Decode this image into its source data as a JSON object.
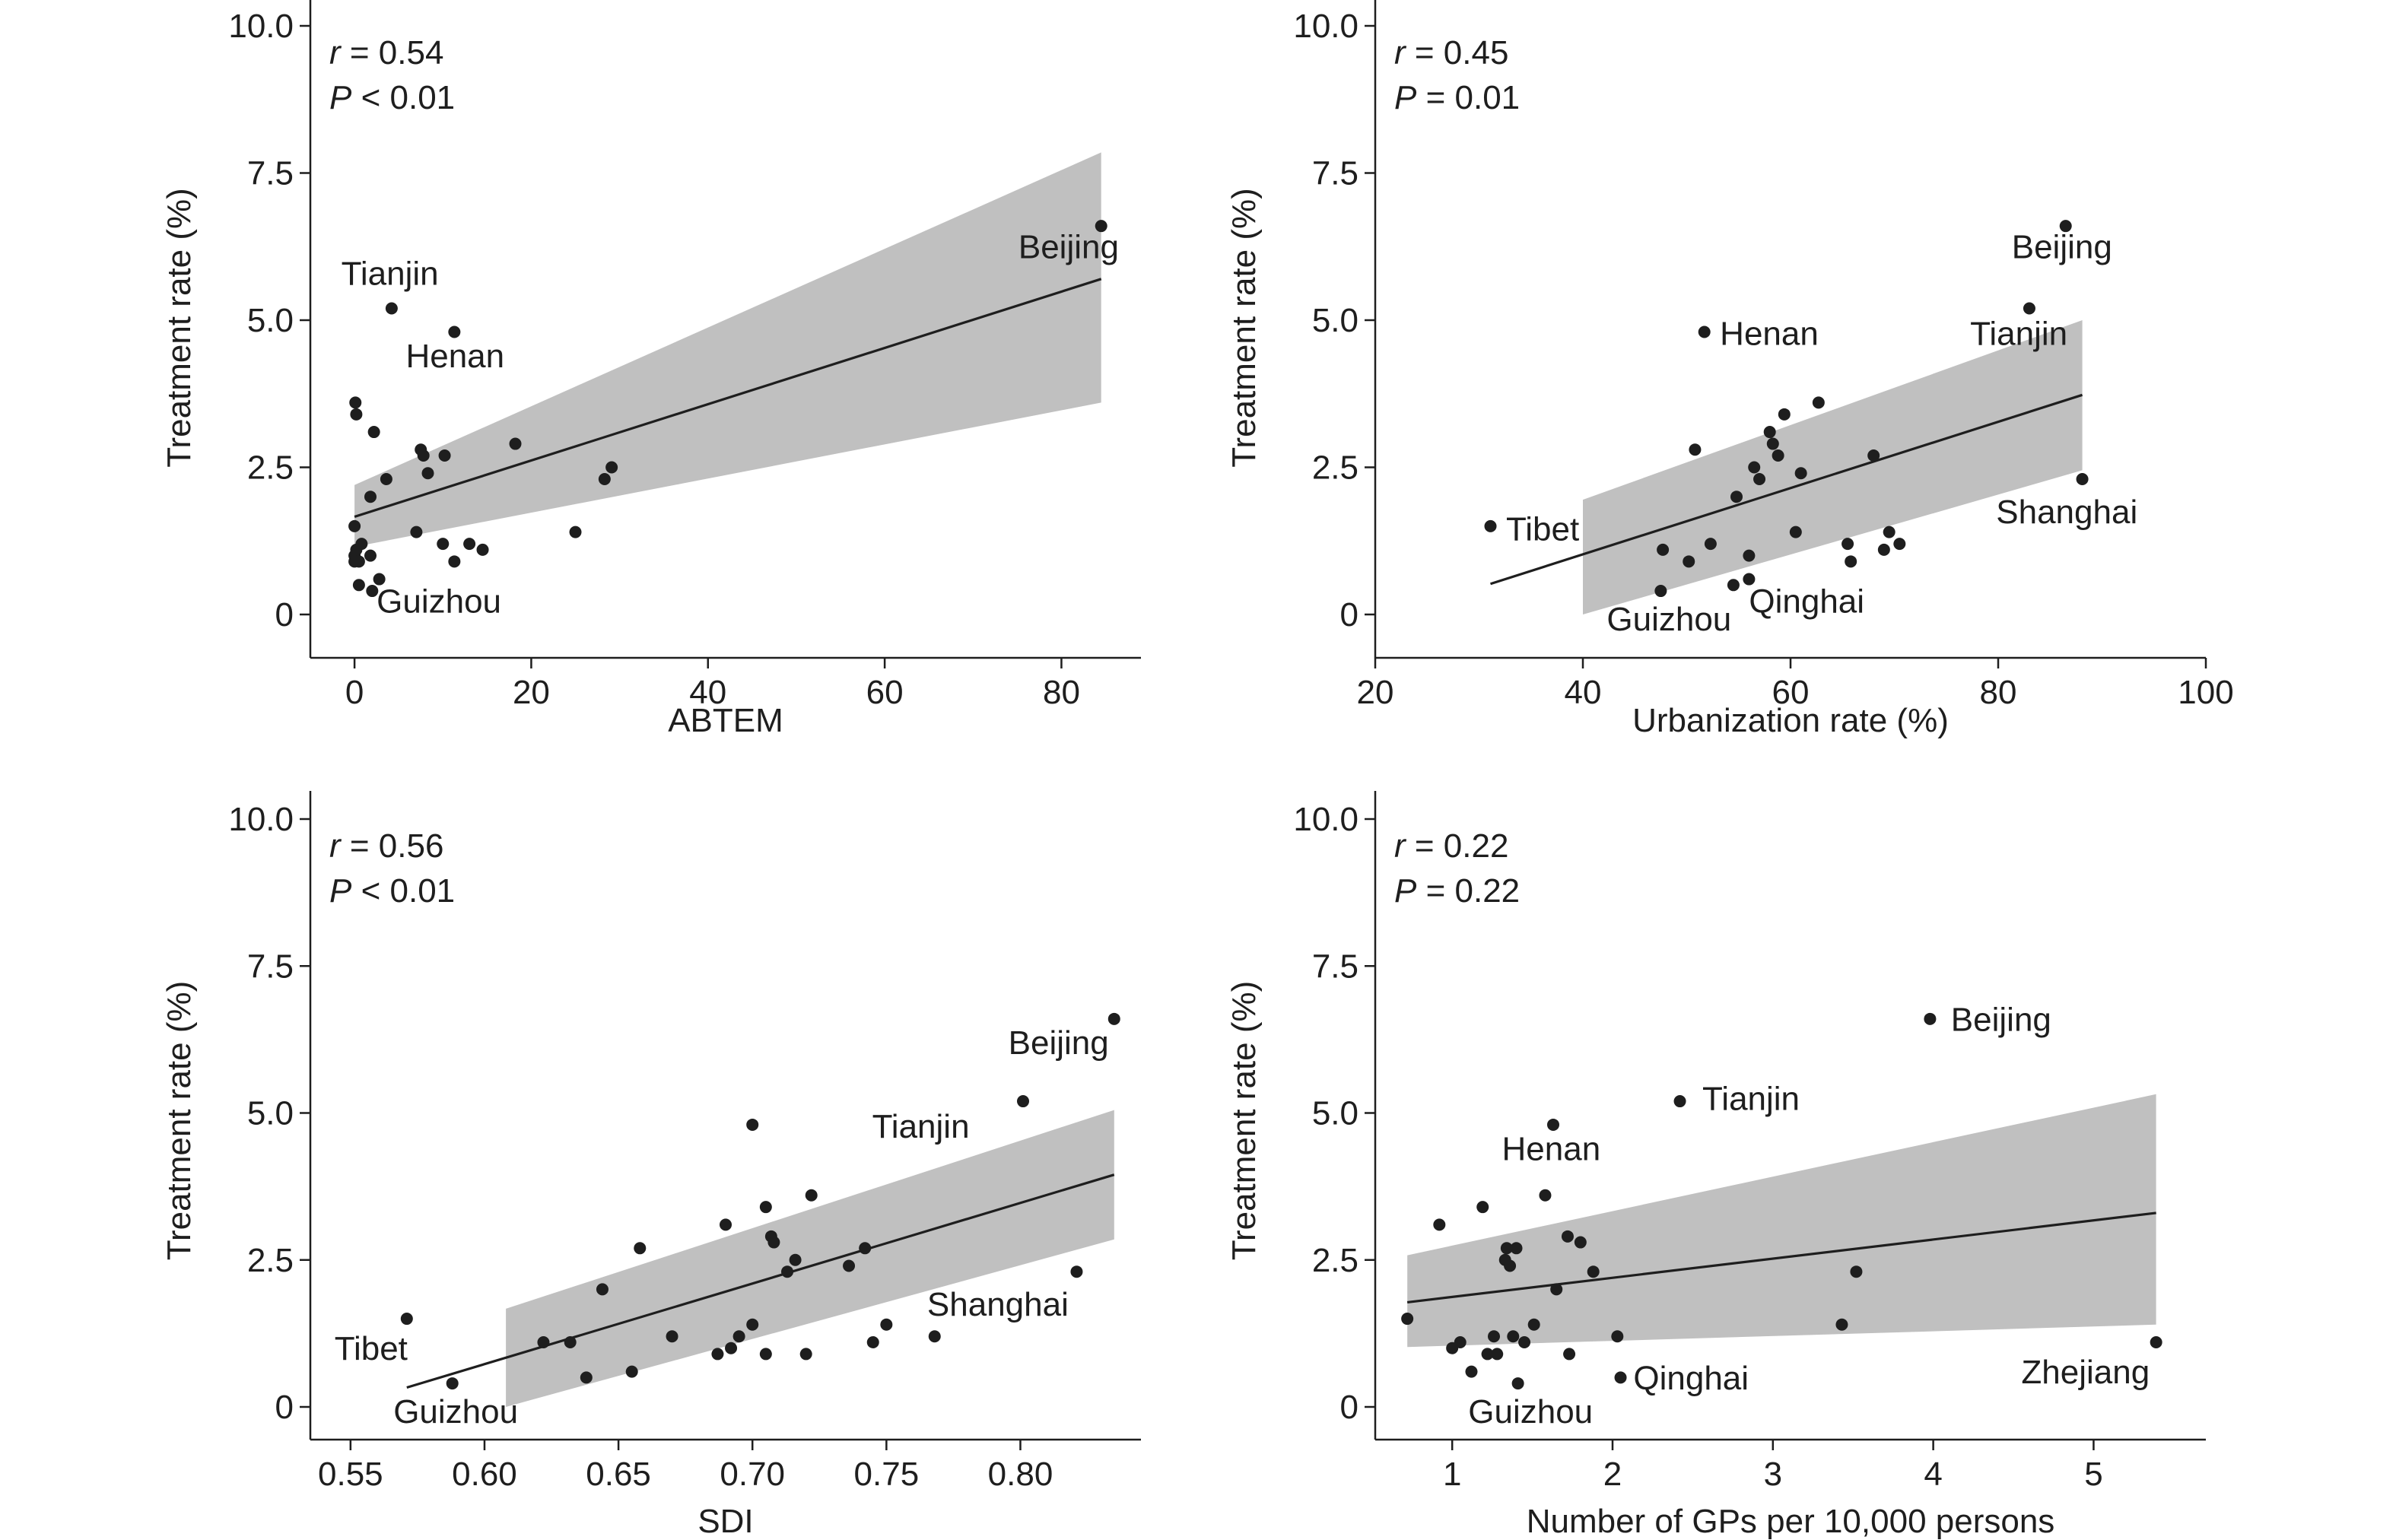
{
  "chart_data": [
    {
      "type": "scatter",
      "xlabel": "ABTEM",
      "ylabel": "Treatment rate (%)",
      "xlim": [
        -5,
        89
      ],
      "ylim": [
        -0.4,
        10.6
      ],
      "xticks": [
        0,
        20,
        40,
        60,
        80
      ],
      "xtick_labels": [
        "0",
        "20",
        "40",
        "60",
        "80"
      ],
      "yticks": [
        0,
        2.5,
        5.0,
        7.5,
        10.0
      ],
      "ytick_labels": [
        "0",
        "2.5",
        "5.0",
        "7.5",
        "10.0"
      ],
      "stats": {
        "r_symbol": "r",
        "r_text": " = 0.54",
        "p_symbol": "P",
        "p_text": " < 0.01"
      },
      "points": [
        [
          84.5,
          6.6
        ],
        [
          4.2,
          5.2
        ],
        [
          11.3,
          4.8
        ],
        [
          0.1,
          3.6
        ],
        [
          0.2,
          3.4
        ],
        [
          2.2,
          3.1
        ],
        [
          18.2,
          2.9
        ],
        [
          7.5,
          2.8
        ],
        [
          7.8,
          2.7
        ],
        [
          10.2,
          2.7
        ],
        [
          29.1,
          2.5
        ],
        [
          8.3,
          2.4
        ],
        [
          3.6,
          2.3
        ],
        [
          28.3,
          2.3
        ],
        [
          1.8,
          2.0
        ],
        [
          0.0,
          1.5
        ],
        [
          7.0,
          1.4
        ],
        [
          25.0,
          1.4
        ],
        [
          0.8,
          1.2
        ],
        [
          10.0,
          1.2
        ],
        [
          13.0,
          1.2
        ],
        [
          0.2,
          1.1
        ],
        [
          14.5,
          1.1
        ],
        [
          0.0,
          1.0
        ],
        [
          1.8,
          1.0
        ],
        [
          0.0,
          0.9
        ],
        [
          0.5,
          0.9
        ],
        [
          11.3,
          0.9
        ],
        [
          2.8,
          0.6
        ],
        [
          0.5,
          0.5
        ],
        [
          2.0,
          0.4
        ]
      ],
      "labels": [
        {
          "text": "Beijing",
          "x": 86.5,
          "y": 6.05,
          "anchor": "end"
        },
        {
          "text": "Tianjin",
          "x": -1.5,
          "y": 5.6,
          "anchor": "start"
        },
        {
          "text": "Henan",
          "x": 5.8,
          "y": 4.2,
          "anchor": "start"
        },
        {
          "text": "Guizhou",
          "x": 2.5,
          "y": 0.03,
          "anchor": "start"
        }
      ],
      "fit": {
        "x0": 0,
        "y0": 1.66,
        "x1": 84.5,
        "y1": 5.7
      },
      "band": {
        "x": [
          0,
          84.5
        ],
        "upper": [
          2.2,
          7.85
        ],
        "lower": [
          1.15,
          3.6
        ]
      }
    },
    {
      "type": "scatter",
      "xlabel": "Urbanization rate (%)",
      "ylabel": "Treatment rate (%)",
      "xlim": [
        20,
        100
      ],
      "ylim": [
        -0.4,
        10.6
      ],
      "xticks": [
        20,
        40,
        60,
        80,
        100
      ],
      "xtick_labels": [
        "20",
        "40",
        "60",
        "80",
        "100"
      ],
      "yticks": [
        0,
        2.5,
        5.0,
        7.5,
        10.0
      ],
      "ytick_labels": [
        "0",
        "2.5",
        "5.0",
        "7.5",
        "10.0"
      ],
      "stats": {
        "r_symbol": "r",
        "r_text": " = 0.45",
        "p_symbol": "P",
        "p_text": " = 0.01"
      },
      "points": [
        [
          86.5,
          6.6
        ],
        [
          83.0,
          5.2
        ],
        [
          51.7,
          4.8
        ],
        [
          62.7,
          3.6
        ],
        [
          59.4,
          3.4
        ],
        [
          58.0,
          3.1
        ],
        [
          58.3,
          2.9
        ],
        [
          50.8,
          2.8
        ],
        [
          58.8,
          2.7
        ],
        [
          68.0,
          2.7
        ],
        [
          56.5,
          2.5
        ],
        [
          61.0,
          2.4
        ],
        [
          57.0,
          2.3
        ],
        [
          88.1,
          2.3
        ],
        [
          54.8,
          2.0
        ],
        [
          31.1,
          1.5
        ],
        [
          60.5,
          1.4
        ],
        [
          69.5,
          1.4
        ],
        [
          52.3,
          1.2
        ],
        [
          65.5,
          1.2
        ],
        [
          70.5,
          1.2
        ],
        [
          47.7,
          1.1
        ],
        [
          69.0,
          1.1
        ],
        [
          56.0,
          1.0
        ],
        [
          50.2,
          0.9
        ],
        [
          65.8,
          0.9
        ],
        [
          56.0,
          0.6
        ],
        [
          54.5,
          0.5
        ],
        [
          47.5,
          0.4
        ]
      ],
      "labels": [
        {
          "text": "Beijing",
          "x": 81.3,
          "y": 6.05,
          "anchor": "start"
        },
        {
          "text": "Tianjin",
          "x": 77.3,
          "y": 4.58,
          "anchor": "start"
        },
        {
          "text": "Henan",
          "x": 53.2,
          "y": 4.58,
          "anchor": "start"
        },
        {
          "text": "Tibet",
          "x": 32.6,
          "y": 1.26,
          "anchor": "start"
        },
        {
          "text": "Shanghai",
          "x": 79.8,
          "y": 1.55,
          "anchor": "start"
        },
        {
          "text": "Guizhou",
          "x": 42.3,
          "y": -0.27,
          "anchor": "start"
        },
        {
          "text": "Qinghai",
          "x": 56.0,
          "y": 0.03,
          "anchor": "start"
        }
      ],
      "fit": {
        "x0": 31.1,
        "y0": 0.52,
        "x1": 88.1,
        "y1": 3.73
      },
      "band": {
        "x": [
          40,
          88.1
        ],
        "upper": [
          1.95,
          5.0
        ],
        "lower": [
          0.0,
          2.45
        ]
      }
    },
    {
      "type": "scatter",
      "xlabel": "SDI",
      "ylabel": "Treatment rate (%)",
      "xlim": [
        0.535,
        0.845
      ],
      "ylim": [
        -0.4,
        10.6
      ],
      "xticks": [
        0.55,
        0.6,
        0.65,
        0.7,
        0.75,
        0.8
      ],
      "xtick_labels": [
        "0.55",
        "0.60",
        "0.65",
        "0.70",
        "0.75",
        "0.80"
      ],
      "yticks": [
        0,
        2.5,
        5.0,
        7.5,
        10.0
      ],
      "ytick_labels": [
        "0",
        "2.5",
        "5.0",
        "7.5",
        "10.0"
      ],
      "stats": {
        "r_symbol": "r",
        "r_text": " = 0.56",
        "p_symbol": "P",
        "p_text": " < 0.01"
      },
      "points": [
        [
          0.835,
          6.6
        ],
        [
          0.801,
          5.2
        ],
        [
          0.7,
          4.8
        ],
        [
          0.722,
          3.6
        ],
        [
          0.705,
          3.4
        ],
        [
          0.69,
          3.1
        ],
        [
          0.707,
          2.9
        ],
        [
          0.708,
          2.8
        ],
        [
          0.658,
          2.7
        ],
        [
          0.742,
          2.7
        ],
        [
          0.716,
          2.5
        ],
        [
          0.736,
          2.4
        ],
        [
          0.713,
          2.3
        ],
        [
          0.821,
          2.3
        ],
        [
          0.644,
          2.0
        ],
        [
          0.571,
          1.5
        ],
        [
          0.7,
          1.4
        ],
        [
          0.75,
          1.4
        ],
        [
          0.67,
          1.2
        ],
        [
          0.695,
          1.2
        ],
        [
          0.768,
          1.2
        ],
        [
          0.622,
          1.1
        ],
        [
          0.632,
          1.1
        ],
        [
          0.745,
          1.1
        ],
        [
          0.692,
          1.0
        ],
        [
          0.687,
          0.9
        ],
        [
          0.705,
          0.9
        ],
        [
          0.72,
          0.9
        ],
        [
          0.655,
          0.6
        ],
        [
          0.638,
          0.5
        ],
        [
          0.588,
          0.4
        ]
      ],
      "labels": [
        {
          "text": "Beijing",
          "x": 0.833,
          "y": 6.0,
          "anchor": "end"
        },
        {
          "text": "Tianjin",
          "x": 0.781,
          "y": 4.58,
          "anchor": "end"
        },
        {
          "text": "Shanghai",
          "x": 0.818,
          "y": 1.55,
          "anchor": "end"
        },
        {
          "text": "Tibet",
          "x": 0.544,
          "y": 0.8,
          "anchor": "start"
        },
        {
          "text": "Guizhou",
          "x": 0.566,
          "y": -0.27,
          "anchor": "start"
        }
      ],
      "fit": {
        "x0": 0.571,
        "y0": 0.33,
        "x1": 0.835,
        "y1": 3.95
      },
      "band": {
        "x": [
          0.608,
          0.835
        ],
        "upper": [
          1.67,
          5.05
        ],
        "lower": [
          0.0,
          2.85
        ]
      }
    },
    {
      "type": "scatter",
      "xlabel": "Number of GPs per 10,000 persons",
      "ylabel": "Treatment rate (%)",
      "xlim": [
        0.52,
        5.7
      ],
      "ylim": [
        -0.4,
        10.6
      ],
      "xticks": [
        1,
        2,
        3,
        4,
        5
      ],
      "xtick_labels": [
        "1",
        "2",
        "3",
        "4",
        "5"
      ],
      "yticks": [
        0,
        2.5,
        5.0,
        7.5,
        10.0
      ],
      "ytick_labels": [
        "0",
        "2.5",
        "5.0",
        "7.5",
        "10.0"
      ],
      "stats": {
        "r_symbol": "r",
        "r_text": " = 0.22",
        "p_symbol": "P",
        "p_text": " = 0.22"
      },
      "points": [
        [
          3.98,
          6.6
        ],
        [
          2.42,
          5.2
        ],
        [
          1.63,
          4.8
        ],
        [
          1.58,
          3.6
        ],
        [
          1.19,
          3.4
        ],
        [
          0.92,
          3.1
        ],
        [
          1.72,
          2.9
        ],
        [
          1.34,
          2.7
        ],
        [
          1.4,
          2.7
        ],
        [
          1.8,
          2.8
        ],
        [
          1.33,
          2.5
        ],
        [
          1.36,
          2.4
        ],
        [
          1.88,
          2.3
        ],
        [
          3.52,
          2.3
        ],
        [
          1.65,
          2.0
        ],
        [
          0.72,
          1.5
        ],
        [
          1.51,
          1.4
        ],
        [
          3.43,
          1.4
        ],
        [
          1.26,
          1.2
        ],
        [
          1.38,
          1.2
        ],
        [
          2.03,
          1.2
        ],
        [
          1.05,
          1.1
        ],
        [
          1.45,
          1.1
        ],
        [
          5.39,
          1.1
        ],
        [
          1.0,
          1.0
        ],
        [
          1.22,
          0.9
        ],
        [
          1.28,
          0.9
        ],
        [
          1.73,
          0.9
        ],
        [
          1.12,
          0.6
        ],
        [
          2.05,
          0.5
        ],
        [
          1.41,
          0.4
        ]
      ],
      "labels": [
        {
          "text": "Beijing",
          "x": 4.11,
          "y": 6.4,
          "anchor": "start"
        },
        {
          "text": "Tianjin",
          "x": 2.56,
          "y": 5.05,
          "anchor": "start"
        },
        {
          "text": "Henan",
          "x": 1.31,
          "y": 4.2,
          "anchor": "start"
        },
        {
          "text": "Qinghai",
          "x": 2.13,
          "y": 0.3,
          "anchor": "start"
        },
        {
          "text": "Zhejiang",
          "x": 5.35,
          "y": 0.4,
          "anchor": "end"
        },
        {
          "text": "Guizhou",
          "x": 1.1,
          "y": -0.27,
          "anchor": "start"
        }
      ],
      "fit": {
        "x0": 0.72,
        "y0": 1.78,
        "x1": 5.39,
        "y1": 3.3
      },
      "band": {
        "x": [
          0.72,
          5.39
        ],
        "upper": [
          2.58,
          5.32
        ],
        "lower": [
          1.02,
          1.4
        ]
      }
    }
  ]
}
